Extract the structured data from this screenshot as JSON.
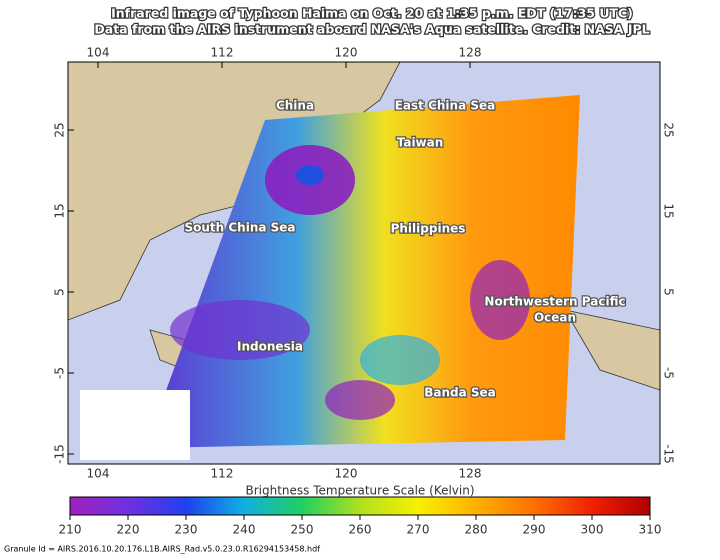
{
  "header": {
    "lines": [
      "Infrared image of Typhoon Haima on Oct. 20 at 1:35 p.m. EDT (17:35 UTC)",
      "Data from the AIRS instrument aboard NASA's Aqua satellite.  Credit: NASA JPL"
    ]
  },
  "map": {
    "lon_ticks": [
      104,
      112,
      120,
      128
    ],
    "lat_ticks": [
      25,
      15,
      5,
      -5,
      -15
    ],
    "labels": [
      "China",
      "East China Sea",
      "Taiwan",
      "South China Sea",
      "Philippines",
      "Northwestern Pacific",
      "Ocean",
      "Indonesia",
      "Banda Sea"
    ]
  },
  "colorbar": {
    "title": "Brightness Temperature Scale (Kelvin)",
    "ticks": [
      210,
      220,
      230,
      240,
      250,
      260,
      270,
      280,
      290,
      300,
      310
    ]
  },
  "footer": "Granule Id = AIRS.2016.10.20.176.L1B.AIRS_Rad.v5.0.23.0.R16294153458.hdf"
}
